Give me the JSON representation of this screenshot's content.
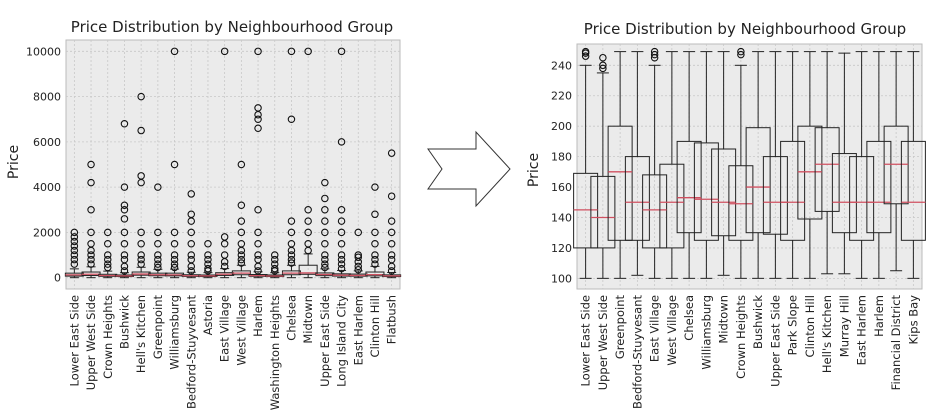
{
  "chart_data": [
    {
      "type": "boxplot",
      "title": "Price Distribution by Neighbourhood Group",
      "xlabel": "",
      "ylabel": "Price",
      "ylim": [
        -500,
        10500
      ],
      "yticks": [
        0,
        2000,
        4000,
        6000,
        8000,
        10000
      ],
      "grid": true,
      "categories": [
        "Lower East Side",
        "Upper West Side",
        "Crown Heights",
        "Bushwick",
        "Hell's Kitchen",
        "Greenpoint",
        "Williamsburg",
        "Bedford-Stuyvesant",
        "Astoria",
        "East Village",
        "West Village",
        "Harlem",
        "Washington Heights",
        "Chelsea",
        "Midtown",
        "Upper East Side",
        "Long Island City",
        "East Harlem",
        "Clinton Hill",
        "Flatbush"
      ],
      "boxes": [
        {
          "q1": 69,
          "median": 125,
          "q3": 200,
          "whislo": 0,
          "whishi": 390
        },
        {
          "q1": 95,
          "median": 150,
          "q3": 250,
          "whislo": 0,
          "whishi": 480
        },
        {
          "q1": 60,
          "median": 95,
          "q3": 150,
          "whislo": 0,
          "whishi": 290
        },
        {
          "q1": 50,
          "median": 80,
          "q3": 120,
          "whislo": 0,
          "whishi": 220
        },
        {
          "q1": 110,
          "median": 160,
          "q3": 250,
          "whislo": 0,
          "whishi": 460
        },
        {
          "q1": 85,
          "median": 130,
          "q3": 200,
          "whislo": 0,
          "whishi": 370
        },
        {
          "q1": 80,
          "median": 125,
          "q3": 200,
          "whislo": 0,
          "whishi": 380
        },
        {
          "q1": 55,
          "median": 85,
          "q3": 130,
          "whislo": 0,
          "whishi": 240
        },
        {
          "q1": 50,
          "median": 80,
          "q3": 120,
          "whislo": 0,
          "whishi": 220
        },
        {
          "q1": 100,
          "median": 150,
          "q3": 220,
          "whislo": 0,
          "whishi": 400
        },
        {
          "q1": 130,
          "median": 200,
          "q3": 300,
          "whislo": 0,
          "whishi": 550
        },
        {
          "q1": 60,
          "median": 90,
          "q3": 140,
          "whislo": 0,
          "whishi": 260
        },
        {
          "q1": 50,
          "median": 75,
          "q3": 120,
          "whislo": 0,
          "whishi": 220
        },
        {
          "q1": 130,
          "median": 200,
          "q3": 300,
          "whislo": 0,
          "whishi": 550
        },
        {
          "q1": 150,
          "median": 210,
          "q3": 550,
          "whislo": 0,
          "whishi": 1050
        },
        {
          "q1": 90,
          "median": 140,
          "q3": 210,
          "whislo": 0,
          "whishi": 390
        },
        {
          "q1": 70,
          "median": 110,
          "q3": 170,
          "whislo": 0,
          "whishi": 320
        },
        {
          "q1": 65,
          "median": 100,
          "q3": 160,
          "whislo": 0,
          "whishi": 300
        },
        {
          "q1": 80,
          "median": 135,
          "q3": 250,
          "whislo": 0,
          "whishi": 500
        },
        {
          "q1": 50,
          "median": 80,
          "q3": 125,
          "whislo": 0,
          "whishi": 230
        }
      ],
      "outliers": [
        [
          600,
          800,
          1000,
          1200,
          1400,
          1600,
          1800,
          2000
        ],
        [
          600,
          800,
          1000,
          1200,
          1500,
          2000,
          3000,
          4200,
          5000
        ],
        [
          450,
          600,
          800,
          1000,
          1500,
          2000
        ],
        [
          300,
          500,
          800,
          1000,
          1500,
          2000,
          2600,
          3000,
          3200,
          4000,
          6800
        ],
        [
          600,
          800,
          1000,
          1500,
          2000,
          4200,
          4500,
          6500,
          8000
        ],
        [
          450,
          600,
          800,
          1000,
          1500,
          2000,
          4000
        ],
        [
          450,
          600,
          800,
          1000,
          1500,
          2000,
          5000,
          10000
        ],
        [
          300,
          500,
          800,
          1000,
          1500,
          2000,
          2500,
          2800,
          3700
        ],
        [
          300,
          400,
          600,
          800,
          1000,
          1500
        ],
        [
          500,
          700,
          1000,
          1500,
          1800,
          10000
        ],
        [
          650,
          800,
          1000,
          1200,
          1500,
          2000,
          2500,
          3200,
          5000
        ],
        [
          300,
          500,
          800,
          1000,
          1500,
          2000,
          3000,
          6600,
          7000,
          7200,
          7500,
          10000
        ],
        [
          300,
          400,
          600,
          800,
          1000
        ],
        [
          650,
          800,
          1000,
          1200,
          1500,
          2000,
          2500,
          7000,
          10000
        ],
        [
          1200,
          1500,
          2000,
          2500,
          3000,
          10000
        ],
        [
          450,
          600,
          800,
          1000,
          1500,
          2000,
          2500,
          3000,
          3500,
          4200
        ],
        [
          400,
          600,
          800,
          1000,
          1500,
          2000,
          2500,
          3000,
          6000,
          10000
        ],
        [
          350,
          500,
          700,
          900,
          1000,
          2000
        ],
        [
          600,
          800,
          1000,
          1500,
          2000,
          2800,
          4000
        ],
        [
          300,
          500,
          800,
          1000,
          1500,
          2000,
          2500,
          3600,
          5500
        ]
      ]
    },
    {
      "type": "boxplot",
      "title": "Price Distribution by Neighbourhood Group",
      "xlabel": "",
      "ylabel": "Price",
      "ylim": [
        93,
        254
      ],
      "yticks": [
        100,
        120,
        140,
        160,
        180,
        200,
        220,
        240
      ],
      "grid": true,
      "categories": [
        "Lower East Side",
        "Upper West Side",
        "Greenpoint",
        "Bedford-Stuyvesant",
        "East Village",
        "West Village",
        "Chelsea",
        "Williamsburg",
        "Midtown",
        "Crown Heights",
        "Bushwick",
        "Upper East Side",
        "Park Slope",
        "Clinton Hill",
        "Hell's Kitchen",
        "Murray Hill",
        "East Harlem",
        "Harlem",
        "Financial District",
        "Kips Bay"
      ],
      "boxes": [
        {
          "q1": 120,
          "median": 145,
          "q3": 169,
          "whislo": 100,
          "whishi": 240
        },
        {
          "q1": 120,
          "median": 140,
          "q3": 167,
          "whislo": 100,
          "whishi": 235
        },
        {
          "q1": 125,
          "median": 170,
          "q3": 200,
          "whislo": 100,
          "whishi": 249
        },
        {
          "q1": 125,
          "median": 150,
          "q3": 180,
          "whislo": 102,
          "whishi": 249
        },
        {
          "q1": 120,
          "median": 145,
          "q3": 168,
          "whislo": 100,
          "whishi": 240
        },
        {
          "q1": 120,
          "median": 150,
          "q3": 175,
          "whislo": 100,
          "whishi": 249
        },
        {
          "q1": 130,
          "median": 153,
          "q3": 190,
          "whislo": 100,
          "whishi": 249
        },
        {
          "q1": 125,
          "median": 152,
          "q3": 189,
          "whislo": 100,
          "whishi": 249
        },
        {
          "q1": 128,
          "median": 150,
          "q3": 185,
          "whislo": 102,
          "whishi": 249
        },
        {
          "q1": 125,
          "median": 149,
          "q3": 174,
          "whislo": 100,
          "whishi": 240
        },
        {
          "q1": 130,
          "median": 160,
          "q3": 199,
          "whislo": 100,
          "whishi": 249
        },
        {
          "q1": 129,
          "median": 150,
          "q3": 180,
          "whislo": 100,
          "whishi": 249
        },
        {
          "q1": 125,
          "median": 150,
          "q3": 190,
          "whislo": 100,
          "whishi": 249
        },
        {
          "q1": 139,
          "median": 170,
          "q3": 200,
          "whislo": 100,
          "whishi": 249
        },
        {
          "q1": 144,
          "median": 175,
          "q3": 199,
          "whislo": 103,
          "whishi": 249
        },
        {
          "q1": 130,
          "median": 150,
          "q3": 182,
          "whislo": 103,
          "whishi": 248
        },
        {
          "q1": 125,
          "median": 150,
          "q3": 180,
          "whislo": 100,
          "whishi": 249
        },
        {
          "q1": 130,
          "median": 150,
          "q3": 190,
          "whislo": 100,
          "whishi": 249
        },
        {
          "q1": 149,
          "median": 175,
          "q3": 200,
          "whislo": 105,
          "whishi": 249
        },
        {
          "q1": 125,
          "median": 150,
          "q3": 190,
          "whislo": 100,
          "whishi": 249
        }
      ],
      "outliers": [
        [
          246,
          248,
          249
        ],
        [
          238,
          240,
          245
        ],
        [],
        [],
        [
          245,
          247,
          249
        ],
        [],
        [],
        [],
        [],
        [
          247,
          249
        ],
        [],
        [],
        [],
        [],
        [],
        [],
        [],
        [],
        [],
        []
      ]
    }
  ],
  "colors": {
    "median": "#d05060",
    "box": "#222222",
    "plot_bg": "#ebebeb",
    "grid": "#c8c8c8"
  },
  "arrow": {
    "icon": "right-arrow-icon"
  }
}
